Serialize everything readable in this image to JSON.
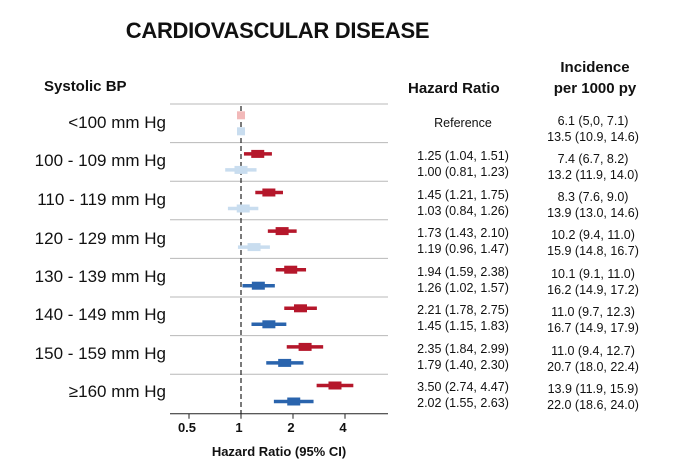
{
  "title": "CARDIOVASCULAR DISEASE",
  "headers": {
    "systolic_bp": "Systolic BP",
    "hazard_ratio": "Hazard Ratio",
    "incidence_line1": "Incidence",
    "incidence_line2": "per 1000 py"
  },
  "rows": [
    {
      "label": "<100 mm Hg",
      "hr_text_1": "Reference",
      "hr_text_2": "",
      "inc_text_1": "6.1 (5,0, 7.1)",
      "inc_text_2": "13.5 (10.9, 14.6)"
    },
    {
      "label": "100 - 109 mm Hg",
      "hr_text_1": "1.25 (1.04, 1.51)",
      "hr_text_2": "1.00 (0.81, 1.23)",
      "inc_text_1": "7.4 (6.7, 8.2)",
      "inc_text_2": "13.2 (11.9, 14.0)"
    },
    {
      "label": "110 - 119 mm Hg",
      "hr_text_1": "1.45 (1.21, 1.75)",
      "hr_text_2": "1.03 (0.84, 1.26)",
      "inc_text_1": "8.3 (7.6, 9.0)",
      "inc_text_2": "13.9 (13.0, 14.6)"
    },
    {
      "label": "120 - 129 mm Hg",
      "hr_text_1": "1.73 (1.43, 2.10)",
      "hr_text_2": "1.19 (0.96, 1.47)",
      "inc_text_1": "10.2 (9.4, 11.0)",
      "inc_text_2": "15.9 (14.8, 16.7)"
    },
    {
      "label": "130 - 139 mm Hg",
      "hr_text_1": "1.94 (1.59, 2.38)",
      "hr_text_2": "1.26 (1.02, 1.57)",
      "inc_text_1": "10.1 (9.1, 11.0)",
      "inc_text_2": "16.2 (14.9, 17.2)"
    },
    {
      "label": "140 - 149 mm Hg",
      "hr_text_1": "2.21 (1.78, 2.75)",
      "hr_text_2": "1.45 (1.15, 1.83)",
      "inc_text_1": "11.0 (9.7, 12.3)",
      "inc_text_2": "16.7 (14.9, 17.9)"
    },
    {
      "label": "150 - 159 mm Hg",
      "hr_text_1": "2.35 (1.84, 2.99)",
      "hr_text_2": "1.79 (1.40, 2.30)",
      "inc_text_1": "11.0 (9.4, 12.7)",
      "inc_text_2": "20.7 (18.0, 22.4)"
    },
    {
      "label": "≥160 mm Hg",
      "hr_text_1": "3.50 (2.74, 4.47)",
      "hr_text_2": "2.02 (1.55, 2.63)",
      "inc_text_1": "13.9 (11.9, 15.9)",
      "inc_text_2": "22.0 (18.6, 24.0)"
    }
  ],
  "chart_data": {
    "type": "forest",
    "title": "CARDIOVASCULAR DISEASE",
    "xlabel": "Hazard Ratio (95% CI)",
    "x_scale": "log",
    "xlim": [
      0.4,
      5.8
    ],
    "x_ticks": [
      0.5,
      1,
      2,
      4
    ],
    "x_tick_labels": [
      "0.5",
      "1",
      "2",
      "4"
    ],
    "reference_line": 1,
    "categories": [
      "<100 mm Hg",
      "100 - 109 mm Hg",
      "110 - 119 mm Hg",
      "120 - 129 mm Hg",
      "130 - 139 mm Hg",
      "140 - 149 mm Hg",
      "150 - 159 mm Hg",
      "≥160 mm Hg"
    ],
    "series": [
      {
        "color": "#b5172b",
        "reference_color": "#f2b9b9",
        "hr": [
          1.0,
          1.25,
          1.45,
          1.73,
          1.94,
          2.21,
          2.35,
          3.5
        ],
        "lower": [
          1.0,
          1.04,
          1.21,
          1.43,
          1.59,
          1.78,
          1.84,
          2.74
        ],
        "upper": [
          1.0,
          1.51,
          1.75,
          2.1,
          2.38,
          2.75,
          2.99,
          4.47
        ]
      },
      {
        "color": "#2a64ad",
        "nonsig_color": "#c9ddef",
        "reference_color": "#c9ddef",
        "hr": [
          1.0,
          1.0,
          1.03,
          1.19,
          1.26,
          1.45,
          1.79,
          2.02
        ],
        "lower": [
          1.0,
          0.81,
          0.84,
          0.96,
          1.02,
          1.15,
          1.4,
          1.55
        ],
        "upper": [
          1.0,
          1.23,
          1.26,
          1.47,
          1.57,
          1.83,
          2.3,
          2.63
        ]
      }
    ]
  }
}
